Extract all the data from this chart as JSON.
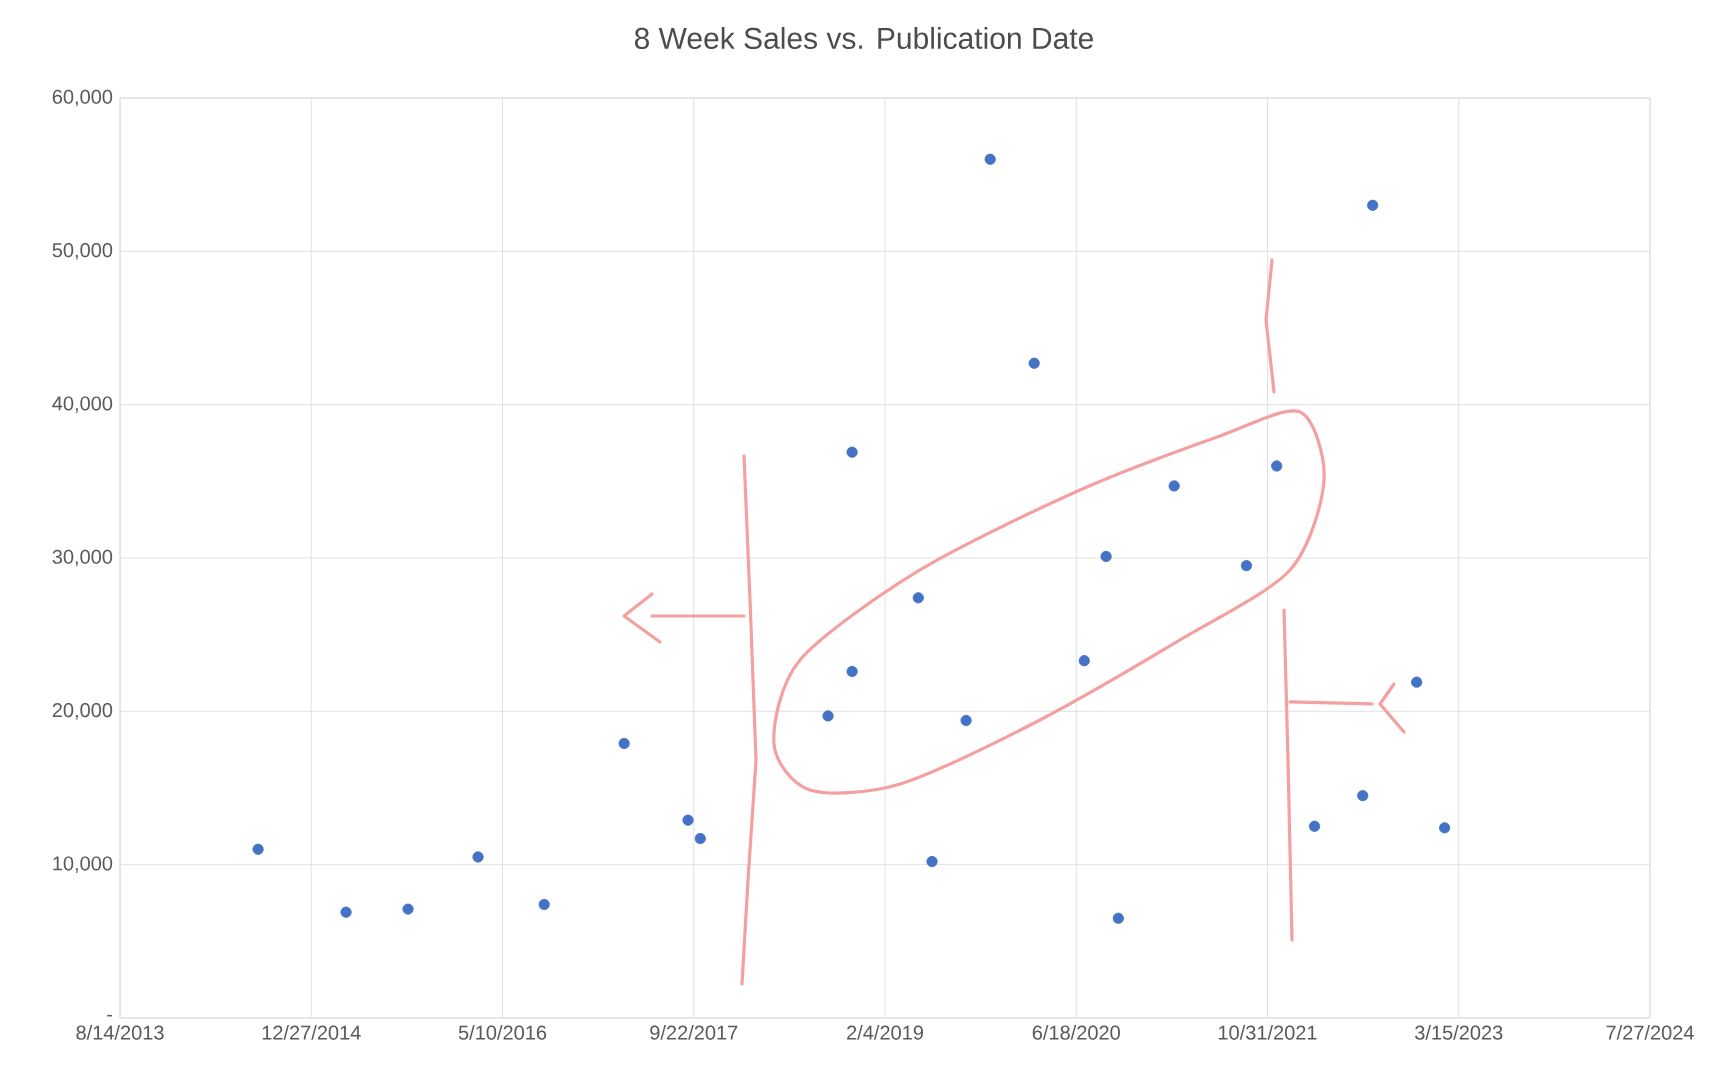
{
  "chart_data": {
    "type": "scatter",
    "title": "8 Week Sales vs. Publication Date",
    "x": [
      "2014-08-10",
      "2015-03-28",
      "2015-09-06",
      "2016-03-07",
      "2016-08-27",
      "2017-03-24",
      "2017-09-07",
      "2017-10-09",
      "2018-09-08",
      "2018-11-10",
      "2018-11-10",
      "2019-05-02",
      "2019-06-07",
      "2019-09-04",
      "2019-11-06",
      "2020-02-29",
      "2020-07-09",
      "2020-09-04",
      "2020-10-06",
      "2021-03-01",
      "2021-09-06",
      "2021-11-24",
      "2022-03-03",
      "2022-07-07",
      "2022-08-02",
      "2022-11-25",
      "2023-02-06"
    ],
    "values": [
      11000,
      6900,
      7100,
      10500,
      7400,
      17900,
      12900,
      11700,
      19700,
      22600,
      36900,
      27400,
      10200,
      19400,
      56000,
      42700,
      23300,
      30100,
      6500,
      34700,
      29500,
      36000,
      12500,
      14500,
      53000,
      21900,
      12400
    ],
    "color": "#4472c4",
    "marker": "circle",
    "grid": true,
    "xlim": [
      "2013-08-14",
      "2024-07-27"
    ],
    "xticks": [
      {
        "value": "2013-08-14",
        "label": "8/14/2013"
      },
      {
        "value": "2014-12-27",
        "label": "12/27/2014"
      },
      {
        "value": "2016-05-10",
        "label": "5/10/2016"
      },
      {
        "value": "2017-09-22",
        "label": "9/22/2017"
      },
      {
        "value": "2019-02-04",
        "label": "2/4/2019"
      },
      {
        "value": "2020-06-18",
        "label": "6/18/2020"
      },
      {
        "value": "2021-10-31",
        "label": "10/31/2021"
      },
      {
        "value": "2023-03-15",
        "label": "3/15/2023"
      },
      {
        "value": "2024-07-27",
        "label": "7/27/2024"
      }
    ],
    "ylim": [
      0,
      60000
    ],
    "yticks": [
      {
        "value": 0,
        "label": "-"
      },
      {
        "value": 10000,
        "label": "10,000"
      },
      {
        "value": 20000,
        "label": "20,000"
      },
      {
        "value": 30000,
        "label": "30,000"
      },
      {
        "value": 40000,
        "label": "40,000"
      },
      {
        "value": 50000,
        "label": "50,000"
      },
      {
        "value": 60000,
        "label": "60,000"
      }
    ]
  }
}
